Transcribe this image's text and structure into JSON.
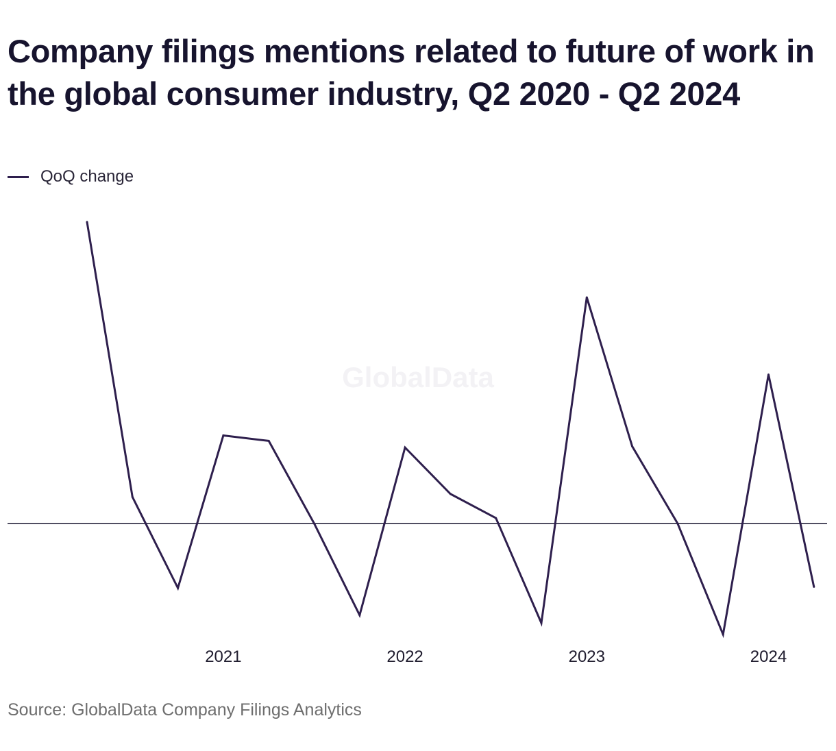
{
  "title": "Company filings mentions related to future of work in the global consumer industry, Q2 2020 - Q2 2024",
  "source": "Source: GlobalData Company Filings Analytics",
  "watermark": "GlobalData",
  "legend": {
    "label": "QoQ change",
    "color": "#2e1f4d"
  },
  "chart_data": {
    "type": "line",
    "title": "Company filings mentions related to future of work in the global consumer industry, Q2 2020 - Q2 2024",
    "xlabel": "",
    "ylabel": "",
    "x": [
      "Q2 2020",
      "Q3 2020",
      "Q4 2020",
      "Q1 2021",
      "Q2 2021",
      "Q3 2021",
      "Q4 2021",
      "Q1 2022",
      "Q2 2022",
      "Q3 2022",
      "Q4 2022",
      "Q1 2023",
      "Q2 2023",
      "Q3 2023",
      "Q4 2023",
      "Q1 2024",
      "Q2 2024"
    ],
    "tick_labels": [
      {
        "x": "Q1 2021",
        "label": "2021"
      },
      {
        "x": "Q1 2022",
        "label": "2022"
      },
      {
        "x": "Q1 2023",
        "label": "2023"
      },
      {
        "x": "Q1 2024",
        "label": "2024"
      }
    ],
    "series": [
      {
        "name": "QoQ change",
        "color": "#2e1f4d",
        "values": [
          0.5,
          0.044,
          -0.107,
          0.146,
          0.137,
          0.0,
          -0.152,
          0.126,
          0.049,
          0.009,
          -0.165,
          0.375,
          0.128,
          0.0,
          -0.184,
          0.247,
          -0.105
        ]
      }
    ],
    "ylim": [
      -0.2,
      0.5
    ],
    "zero_line": true,
    "grid": false,
    "legend_position": "top-left",
    "y_axis_labels_shown": false
  }
}
